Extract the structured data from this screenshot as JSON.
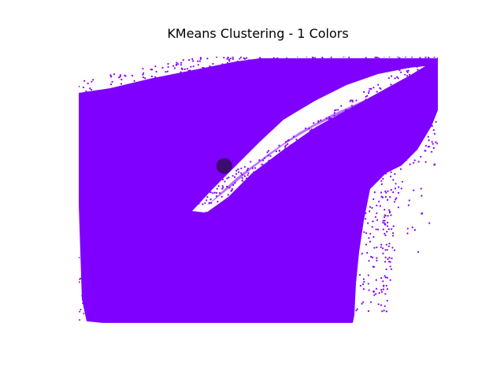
{
  "chart_data": {
    "type": "scatter",
    "title": "KMeans Clustering - 1 Colors",
    "xlabel": "",
    "ylabel": "",
    "axes_visible": false,
    "grid": false,
    "series": [
      {
        "kind": "points",
        "color": "#7f00ff",
        "description_hidden": true
      },
      {
        "kind": "centroid",
        "color": "#3d0a6e",
        "points": [
          [
            0.405,
            0.592
          ]
        ]
      }
    ],
    "xlim": [
      0,
      1
    ],
    "ylim": [
      0,
      1
    ]
  }
}
